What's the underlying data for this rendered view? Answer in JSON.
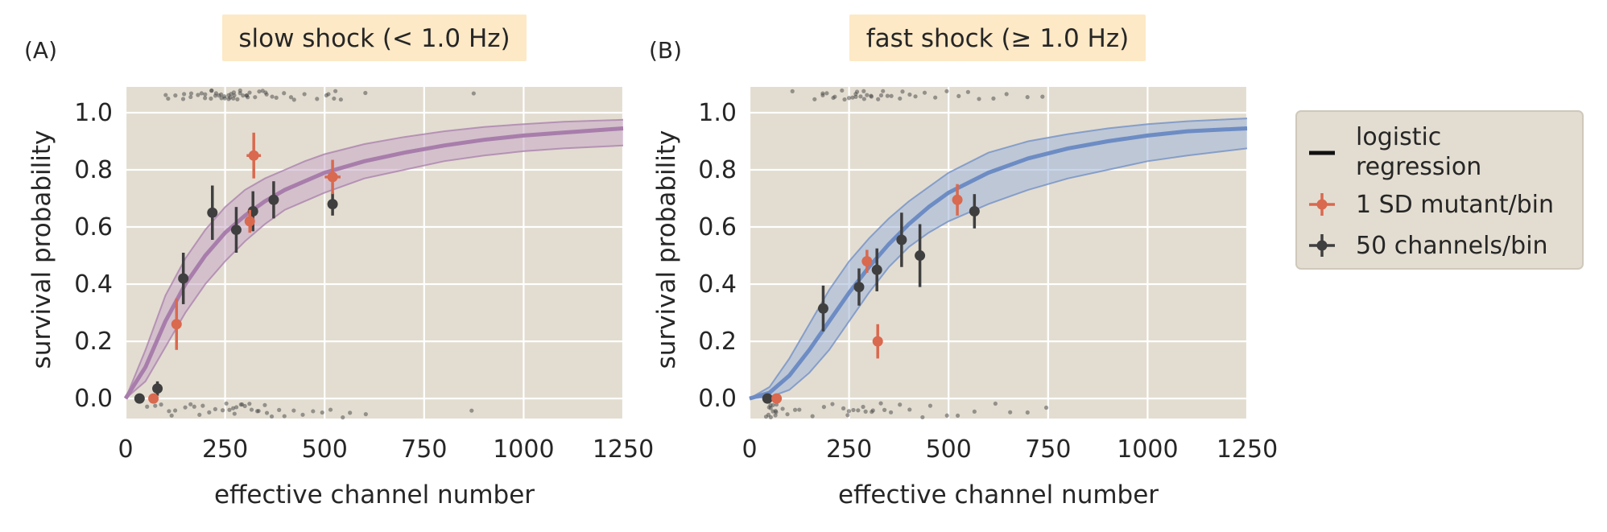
{
  "colors": {
    "panel_bg": "#e3ddd1",
    "grid": "#ffffff",
    "title_bg": "#fde9c6",
    "slow_curve": "#a87dab",
    "slow_band": "#c6a8c7",
    "fast_curve": "#6d8cc4",
    "fast_band": "#9fb4da",
    "mutant": "#d9694f",
    "channels": "#3f3f3f",
    "raw": "#444444",
    "legend_bg": "#e3ddd1",
    "text": "#262626"
  },
  "legend": {
    "items": [
      {
        "label_lines": [
          "logistic",
          "regression"
        ],
        "kind": "line",
        "color": "#111111"
      },
      {
        "label_lines": [
          "1 SD mutant/bin"
        ],
        "kind": "errorbar",
        "color": "#d9694f"
      },
      {
        "label_lines": [
          "50 channels/bin"
        ],
        "kind": "errorbar",
        "color": "#3f3f3f"
      }
    ]
  },
  "chart_data": [
    {
      "panel": "(A)",
      "type": "scatter",
      "title": "slow shock (< 1.0 Hz)",
      "xlabel": "effective channel number",
      "ylabel": "survival probability",
      "xlim": [
        0,
        1250
      ],
      "ylim": [
        -0.07,
        1.09
      ],
      "xticks": [
        0,
        250,
        500,
        750,
        1000,
        1250
      ],
      "yticks": [
        0.0,
        0.2,
        0.4,
        0.6,
        0.8,
        1.0
      ],
      "ytick_labels": [
        "0.0",
        "0.2",
        "0.4",
        "0.6",
        "0.8",
        "1.0"
      ],
      "grid": true,
      "logistic_regression": {
        "x": [
          0,
          50,
          100,
          150,
          200,
          250,
          300,
          350,
          400,
          450,
          500,
          600,
          700,
          800,
          900,
          1000,
          1100,
          1250
        ],
        "y": [
          0.0,
          0.11,
          0.27,
          0.4,
          0.5,
          0.58,
          0.64,
          0.69,
          0.73,
          0.76,
          0.79,
          0.83,
          0.86,
          0.885,
          0.905,
          0.92,
          0.93,
          0.945
        ],
        "lower": [
          0.0,
          0.06,
          0.18,
          0.3,
          0.4,
          0.48,
          0.55,
          0.61,
          0.66,
          0.69,
          0.72,
          0.77,
          0.8,
          0.83,
          0.85,
          0.865,
          0.875,
          0.885
        ],
        "upper": [
          0.0,
          0.17,
          0.36,
          0.49,
          0.59,
          0.67,
          0.73,
          0.77,
          0.8,
          0.83,
          0.855,
          0.89,
          0.915,
          0.935,
          0.95,
          0.96,
          0.968,
          0.975
        ]
      },
      "mutant_bins": [
        {
          "x": 70,
          "y": 0.0,
          "yerr": 0.0,
          "xerr": 4
        },
        {
          "x": 128,
          "y": 0.26,
          "yerr": 0.09,
          "xerr": 6
        },
        {
          "x": 312,
          "y": 0.62,
          "yerr": 0.04,
          "xerr": 10
        },
        {
          "x": 322,
          "y": 0.85,
          "yerr": 0.08,
          "xerr": 18
        },
        {
          "x": 520,
          "y": 0.775,
          "yerr": 0.06,
          "xerr": 20
        }
      ],
      "channel_bins": [
        {
          "x": 35,
          "y": 0.0,
          "yerr": 0.0
        },
        {
          "x": 80,
          "y": 0.035,
          "yerr": 0.025
        },
        {
          "x": 145,
          "y": 0.42,
          "yerr": 0.09
        },
        {
          "x": 218,
          "y": 0.65,
          "yerr": 0.095
        },
        {
          "x": 278,
          "y": 0.59,
          "yerr": 0.08
        },
        {
          "x": 320,
          "y": 0.655,
          "yerr": 0.07
        },
        {
          "x": 372,
          "y": 0.695,
          "yerr": 0.065
        },
        {
          "x": 520,
          "y": 0.68,
          "yerr": 0.04
        }
      ],
      "raw_survived_x": [
        100,
        110,
        125,
        140,
        148,
        160,
        170,
        185,
        195,
        200,
        205,
        210,
        215,
        220,
        225,
        230,
        235,
        238,
        242,
        246,
        250,
        254,
        258,
        262,
        266,
        270,
        274,
        278,
        282,
        286,
        290,
        295,
        300,
        305,
        310,
        316,
        322,
        330,
        340,
        350,
        360,
        370,
        380,
        395,
        410,
        425,
        450,
        475,
        500,
        510,
        520,
        530,
        545,
        600,
        870
      ],
      "raw_died_x": [
        50,
        80,
        95,
        105,
        120,
        130,
        150,
        165,
        175,
        190,
        200,
        215,
        230,
        245,
        250,
        258,
        265,
        272,
        280,
        288,
        295,
        302,
        310,
        318,
        326,
        335,
        345,
        355,
        365,
        380,
        400,
        420,
        440,
        465,
        490,
        520,
        545,
        565,
        600,
        870
      ]
    },
    {
      "panel": "(B)",
      "type": "scatter",
      "title": "fast shock (≥ 1.0 Hz)",
      "xlabel": "effective channel number",
      "ylabel": "survival probability",
      "xlim": [
        0,
        1250
      ],
      "ylim": [
        -0.07,
        1.09
      ],
      "xticks": [
        0,
        250,
        500,
        750,
        1000,
        1250
      ],
      "yticks": [
        0.0,
        0.2,
        0.4,
        0.6,
        0.8,
        1.0
      ],
      "ytick_labels": [
        "0.0",
        "0.2",
        "0.4",
        "0.6",
        "0.8",
        "1.0"
      ],
      "grid": true,
      "logistic_regression": {
        "x": [
          0,
          50,
          100,
          150,
          200,
          250,
          300,
          350,
          400,
          450,
          500,
          600,
          700,
          800,
          900,
          1000,
          1100,
          1250
        ],
        "y": [
          0.0,
          0.02,
          0.08,
          0.17,
          0.27,
          0.37,
          0.46,
          0.54,
          0.61,
          0.67,
          0.72,
          0.79,
          0.84,
          0.875,
          0.9,
          0.92,
          0.935,
          0.945
        ],
        "lower": [
          0.0,
          0.005,
          0.03,
          0.09,
          0.17,
          0.27,
          0.37,
          0.46,
          0.53,
          0.58,
          0.62,
          0.68,
          0.73,
          0.77,
          0.8,
          0.83,
          0.85,
          0.875
        ],
        "upper": [
          0.0,
          0.04,
          0.14,
          0.26,
          0.38,
          0.48,
          0.56,
          0.63,
          0.69,
          0.74,
          0.79,
          0.86,
          0.9,
          0.925,
          0.945,
          0.96,
          0.97,
          0.98
        ]
      },
      "mutant_bins": [
        {
          "x": 68,
          "y": 0.0,
          "yerr": 0.0,
          "xerr": 4
        },
        {
          "x": 295,
          "y": 0.48,
          "yerr": 0.04,
          "xerr": 8
        },
        {
          "x": 322,
          "y": 0.2,
          "yerr": 0.06,
          "xerr": 5
        },
        {
          "x": 522,
          "y": 0.695,
          "yerr": 0.055,
          "xerr": 12
        }
      ],
      "channel_bins": [
        {
          "x": 45,
          "y": 0.0,
          "yerr": 0.0
        },
        {
          "x": 185,
          "y": 0.315,
          "yerr": 0.08
        },
        {
          "x": 275,
          "y": 0.39,
          "yerr": 0.065
        },
        {
          "x": 320,
          "y": 0.45,
          "yerr": 0.075
        },
        {
          "x": 382,
          "y": 0.555,
          "yerr": 0.095
        },
        {
          "x": 428,
          "y": 0.5,
          "yerr": 0.11
        },
        {
          "x": 565,
          "y": 0.655,
          "yerr": 0.06
        }
      ],
      "raw_survived_x": [
        105,
        165,
        178,
        188,
        198,
        210,
        220,
        232,
        240,
        248,
        256,
        262,
        268,
        274,
        280,
        286,
        292,
        298,
        305,
        312,
        320,
        330,
        340,
        350,
        362,
        375,
        390,
        405,
        420,
        440,
        465,
        490,
        520,
        550,
        580,
        610,
        640,
        700,
        740
      ],
      "raw_died_x": [
        40,
        45,
        48,
        50,
        52,
        55,
        58,
        60,
        62,
        65,
        68,
        72,
        78,
        90,
        110,
        130,
        160,
        190,
        210,
        230,
        245,
        255,
        265,
        275,
        285,
        295,
        305,
        315,
        330,
        345,
        360,
        380,
        400,
        430,
        460,
        490,
        520,
        560,
        620,
        660,
        700,
        740
      ]
    }
  ]
}
